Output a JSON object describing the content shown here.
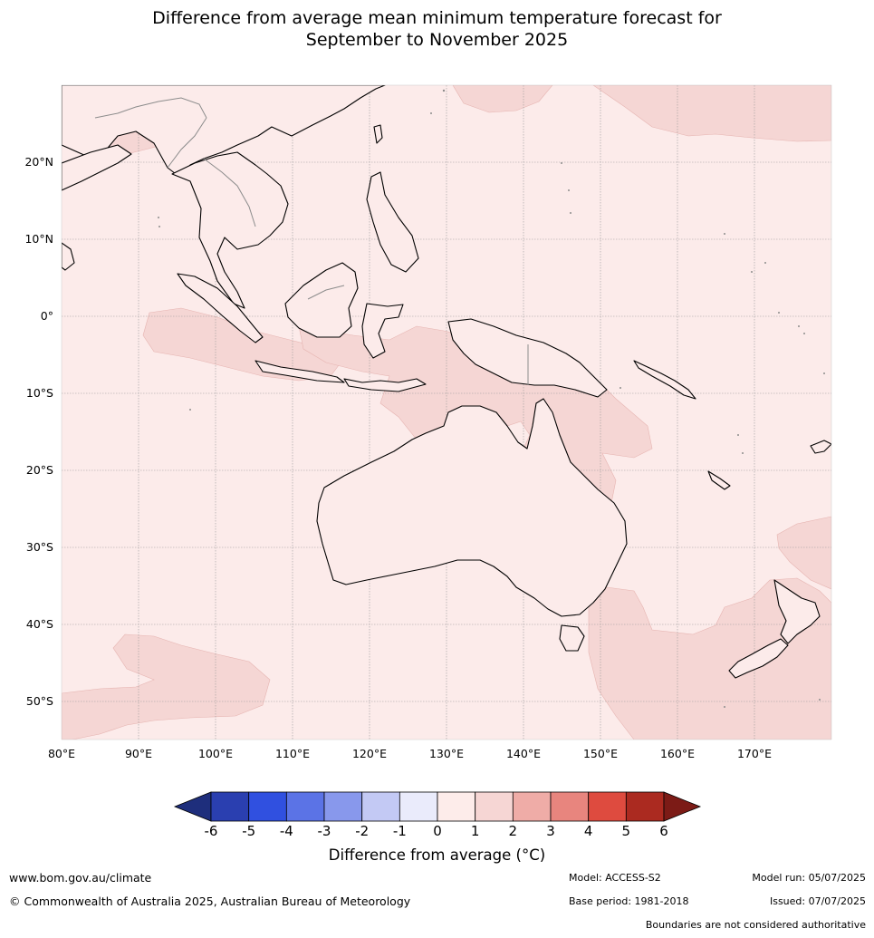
{
  "title_line1": "Difference from average mean minimum temperature forecast for",
  "title_line2": "September to November 2025",
  "map": {
    "lon_labels": [
      "80°E",
      "90°E",
      "100°E",
      "110°E",
      "120°E",
      "130°E",
      "140°E",
      "150°E",
      "160°E",
      "170°E"
    ],
    "lat_labels": [
      "20°N",
      "10°N",
      "0°",
      "10°S",
      "20°S",
      "30°S",
      "40°S",
      "50°S"
    ],
    "colors": {
      "ocean_base": "#fcebea",
      "anomaly_1_2": "#f5d6d4",
      "coast": "#000000",
      "border": "#8c8c8c",
      "grid": "#9a9a9a"
    }
  },
  "colorbar": {
    "ticks": [
      "-6",
      "-5",
      "-4",
      "-3",
      "-2",
      "-1",
      "0",
      "1",
      "2",
      "3",
      "4",
      "5",
      "6"
    ],
    "colors": [
      "#1e2e7c",
      "#2a3fb0",
      "#3050e0",
      "#5b73e6",
      "#8898ec",
      "#c3c9f4",
      "#eaebfb",
      "#fdecea",
      "#f6d6d4",
      "#efaca7",
      "#e8857e",
      "#de4b3f",
      "#ab2a20",
      "#7c1b16"
    ],
    "title": "Difference from average (°C)"
  },
  "footer": {
    "website": "www.bom.gov.au/climate",
    "copyright": "© Commonwealth of Australia 2025, Australian Bureau of Meteorology",
    "model": "Model: ACCESS-S2",
    "base_period": "Base period: 1981-2018",
    "model_run": "Model run: 05/07/2025",
    "issued": "Issued: 07/07/2025",
    "disclaimer": "Boundaries are not considered authoritative"
  }
}
